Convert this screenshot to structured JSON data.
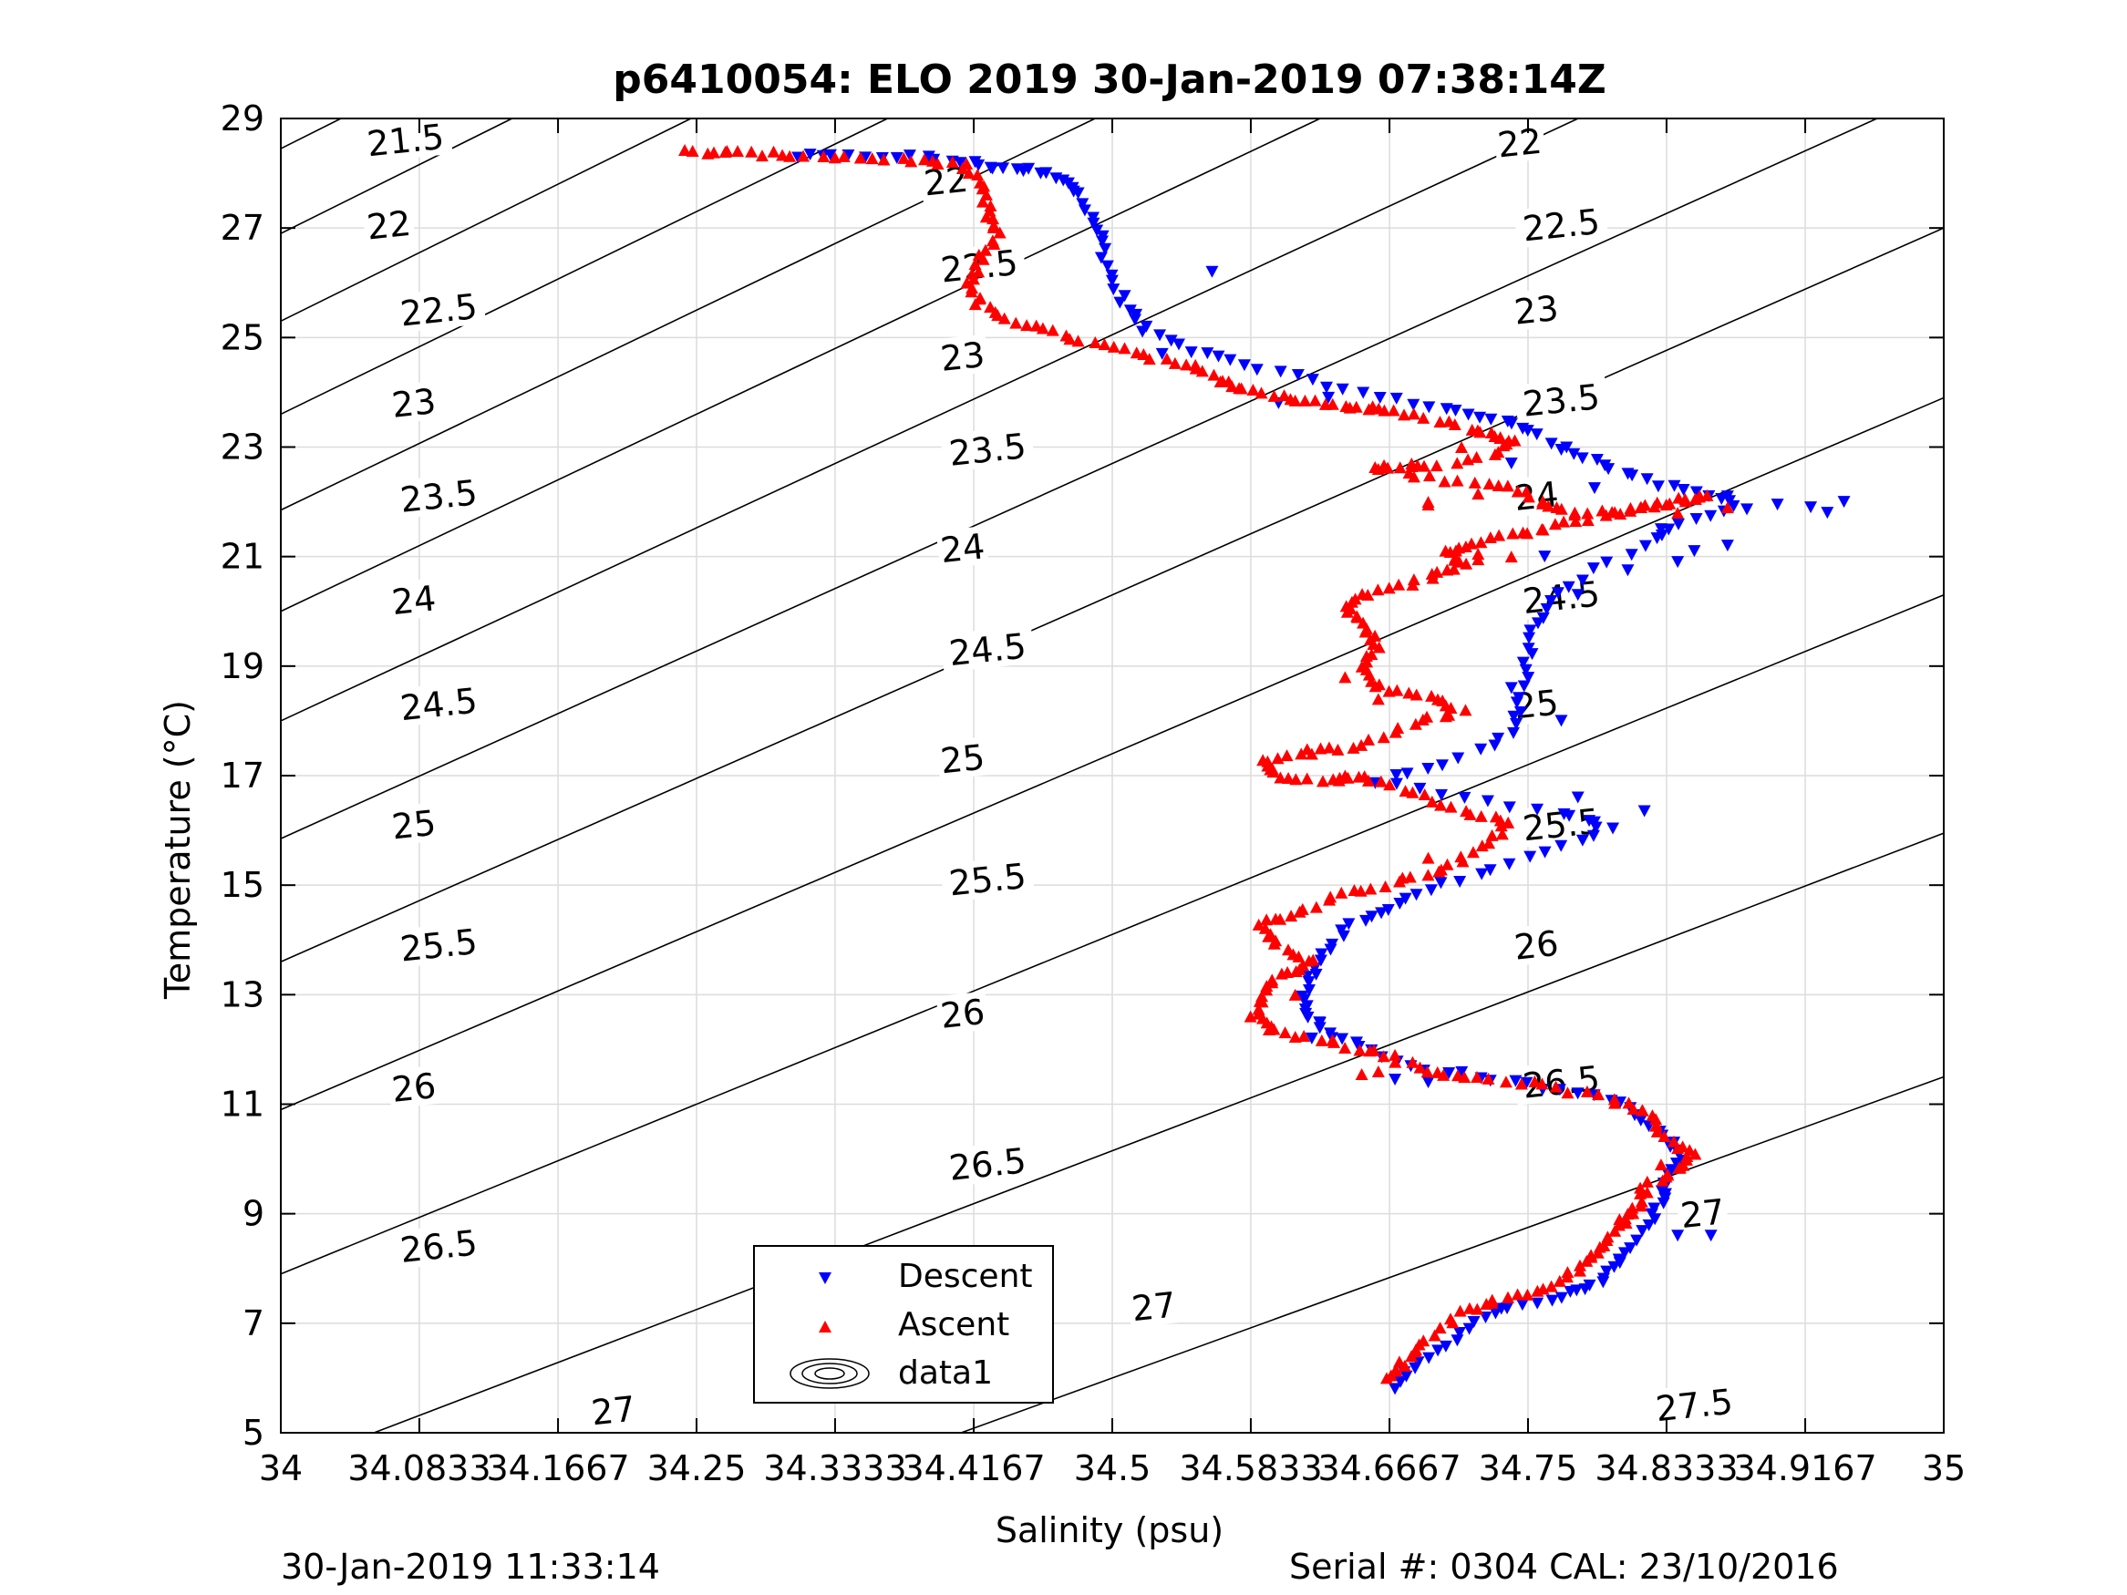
{
  "footer": {
    "left": "30-Jan-2019 11:33:14",
    "right": "Serial #: 0304  CAL: 23/10/2016"
  },
  "colors": {
    "descent": "#0000ff",
    "ascent": "#ff0000",
    "contour": "#000000",
    "grid": "#dcdcdc"
  },
  "chart_data": {
    "type": "scatter",
    "title": "p6410054: ELO 2019 30-Jan-2019 07:38:14Z",
    "xlabel": "Salinity (psu)",
    "ylabel": "Temperature (°C)",
    "xlim": [
      34,
      35
    ],
    "ylim": [
      5,
      29
    ],
    "grid": true,
    "legend_position": "bottom-center",
    "xticks": [
      34,
      34.0833,
      34.1667,
      34.25,
      34.3333,
      34.4167,
      34.5,
      34.5833,
      34.6667,
      34.75,
      34.8333,
      34.9167,
      35
    ],
    "xtick_labels": [
      "34",
      "34.0833",
      "34.1667",
      "34.25",
      "34.3333",
      "34.4167",
      "34.5",
      "34.5833",
      "34.6667",
      "34.75",
      "34.8333",
      "34.9167",
      "35"
    ],
    "yticks": [
      5,
      7,
      9,
      11,
      13,
      15,
      17,
      19,
      21,
      23,
      25,
      27,
      29
    ],
    "ytick_labels": [
      "5",
      "7",
      "9",
      "11",
      "13",
      "15",
      "17",
      "19",
      "21",
      "23",
      "25",
      "27",
      "29"
    ],
    "contours": [
      {
        "label": "21.5",
        "t0": 28.45,
        "slope": 15.2
      },
      {
        "label": "22",
        "t0": 26.9,
        "slope": 15.1
      },
      {
        "label": "22.5",
        "t0": 25.3,
        "slope": 15.0
      },
      {
        "label": "23",
        "t0": 23.6,
        "slope": 14.8
      },
      {
        "label": "23.5",
        "t0": 21.85,
        "slope": 14.6
      },
      {
        "label": "24",
        "t0": 20.0,
        "slope": 14.4
      },
      {
        "label": "24.5",
        "t0": 18.0,
        "slope": 14.1
      },
      {
        "label": "25",
        "t0": 15.85,
        "slope": 13.7
      },
      {
        "label": "25.5",
        "t0": 13.6,
        "slope": 13.4
      },
      {
        "label": "26",
        "t0": 10.9,
        "slope": 13.0
      },
      {
        "label": "26.5",
        "t0": 7.9,
        "slope": 12.4
      },
      {
        "label": "27",
        "t0": 4.35,
        "slope": 11.6
      },
      {
        "label": "27.5",
        "t0": 0.5,
        "slope": 11.0
      }
    ],
    "contour_labels": [
      {
        "label": "21.5",
        "x": 34.075,
        "y": 28.6
      },
      {
        "label": "22",
        "x": 34.065,
        "y": 27.05
      },
      {
        "label": "22.5",
        "x": 34.095,
        "y": 25.5
      },
      {
        "label": "23",
        "x": 34.08,
        "y": 23.8
      },
      {
        "label": "23.5",
        "x": 34.095,
        "y": 22.1
      },
      {
        "label": "24",
        "x": 34.08,
        "y": 20.2
      },
      {
        "label": "24.5",
        "x": 34.095,
        "y": 18.3
      },
      {
        "label": "25",
        "x": 34.08,
        "y": 16.1
      },
      {
        "label": "25.5",
        "x": 34.095,
        "y": 13.9
      },
      {
        "label": "26",
        "x": 34.08,
        "y": 11.3
      },
      {
        "label": "26.5",
        "x": 34.095,
        "y": 8.4
      },
      {
        "label": "27",
        "x": 34.2,
        "y": 5.4
      },
      {
        "label": "22",
        "x": 34.4,
        "y": 27.85
      },
      {
        "label": "22.5",
        "x": 34.42,
        "y": 26.3
      },
      {
        "label": "23",
        "x": 34.41,
        "y": 24.65
      },
      {
        "label": "23.5",
        "x": 34.425,
        "y": 22.95
      },
      {
        "label": "24",
        "x": 34.41,
        "y": 21.15
      },
      {
        "label": "24.5",
        "x": 34.425,
        "y": 19.3
      },
      {
        "label": "25",
        "x": 34.41,
        "y": 17.3
      },
      {
        "label": "25.5",
        "x": 34.425,
        "y": 15.1
      },
      {
        "label": "26",
        "x": 34.41,
        "y": 12.65
      },
      {
        "label": "26.5",
        "x": 34.425,
        "y": 9.9
      },
      {
        "label": "27",
        "x": 34.525,
        "y": 7.3
      },
      {
        "label": "22",
        "x": 34.745,
        "y": 28.55
      },
      {
        "label": "22.5",
        "x": 34.77,
        "y": 27.05
      },
      {
        "label": "23",
        "x": 34.755,
        "y": 25.5
      },
      {
        "label": "23.5",
        "x": 34.77,
        "y": 23.85
      },
      {
        "label": "24",
        "x": 34.755,
        "y": 22.1
      },
      {
        "label": "24.5",
        "x": 34.77,
        "y": 20.25
      },
      {
        "label": "25",
        "x": 34.755,
        "y": 18.3
      },
      {
        "label": "25.5",
        "x": 34.77,
        "y": 16.1
      },
      {
        "label": "26",
        "x": 34.755,
        "y": 13.9
      },
      {
        "label": "26.5",
        "x": 34.77,
        "y": 11.4
      },
      {
        "label": "27",
        "x": 34.855,
        "y": 9.0
      },
      {
        "label": "27.5",
        "x": 34.85,
        "y": 5.5
      }
    ],
    "legend": [
      "Descent",
      "Ascent",
      "data1"
    ],
    "descent_path": [
      [
        34.31,
        28.3
      ],
      [
        34.34,
        28.3
      ],
      [
        34.38,
        28.3
      ],
      [
        34.41,
        28.2
      ],
      [
        34.43,
        28.1
      ],
      [
        34.45,
        28.05
      ],
      [
        34.47,
        27.9
      ],
      [
        34.48,
        27.6
      ],
      [
        34.49,
        27.1
      ],
      [
        34.495,
        26.6
      ],
      [
        34.5,
        26.0
      ],
      [
        34.51,
        25.5
      ],
      [
        34.52,
        25.1
      ],
      [
        34.55,
        24.75
      ],
      [
        34.58,
        24.5
      ],
      [
        34.62,
        24.2
      ],
      [
        34.66,
        23.9
      ],
      [
        34.7,
        23.7
      ],
      [
        34.73,
        23.5
      ],
      [
        34.75,
        23.3
      ],
      [
        34.78,
        22.9
      ],
      [
        34.8,
        22.6
      ],
      [
        34.83,
        22.3
      ],
      [
        34.86,
        22.1
      ],
      [
        34.88,
        21.9
      ],
      [
        34.84,
        21.6
      ],
      [
        34.82,
        21.2
      ],
      [
        34.78,
        20.6
      ],
      [
        34.76,
        20.0
      ],
      [
        34.75,
        19.5
      ],
      [
        34.75,
        18.9
      ],
      [
        34.745,
        18.3
      ],
      [
        34.74,
        17.8
      ],
      [
        34.7,
        17.2
      ],
      [
        34.66,
        16.9
      ],
      [
        34.71,
        16.6
      ],
      [
        34.77,
        16.3
      ],
      [
        34.8,
        16.0
      ],
      [
        34.76,
        15.6
      ],
      [
        34.72,
        15.2
      ],
      [
        34.68,
        14.8
      ],
      [
        34.66,
        14.5
      ],
      [
        34.64,
        14.2
      ],
      [
        34.625,
        13.7
      ],
      [
        34.62,
        13.3
      ],
      [
        34.615,
        12.9
      ],
      [
        34.62,
        12.6
      ],
      [
        34.63,
        12.3
      ],
      [
        34.65,
        12.05
      ],
      [
        34.68,
        11.7
      ],
      [
        34.72,
        11.5
      ],
      [
        34.76,
        11.3
      ],
      [
        34.8,
        11.1
      ],
      [
        34.82,
        10.7
      ],
      [
        34.835,
        10.3
      ],
      [
        34.84,
        10.0
      ],
      [
        34.835,
        9.6
      ],
      [
        34.83,
        9.3
      ],
      [
        34.825,
        8.9
      ],
      [
        34.81,
        8.4
      ],
      [
        34.8,
        8.0
      ],
      [
        34.79,
        7.7
      ],
      [
        34.77,
        7.5
      ],
      [
        34.74,
        7.3
      ],
      [
        34.72,
        7.0
      ],
      [
        34.7,
        6.6
      ],
      [
        34.68,
        6.2
      ],
      [
        34.67,
        5.8
      ]
    ],
    "descent_outliers": [
      [
        34.9,
        21.95
      ],
      [
        34.92,
        21.9
      ],
      [
        34.94,
        22.0
      ],
      [
        34.93,
        21.8
      ],
      [
        34.87,
        22.1
      ],
      [
        34.85,
        21.1
      ],
      [
        34.87,
        21.2
      ],
      [
        34.83,
        21.5
      ],
      [
        34.84,
        20.9
      ],
      [
        34.81,
        20.75
      ],
      [
        34.76,
        21.0
      ],
      [
        34.78,
        20.3
      ],
      [
        34.74,
        18.6
      ],
      [
        34.77,
        18.0
      ],
      [
        34.73,
        17.55
      ],
      [
        34.78,
        16.6
      ],
      [
        34.82,
        16.35
      ],
      [
        34.79,
        16.15
      ],
      [
        34.56,
        26.2
      ],
      [
        34.53,
        24.7
      ],
      [
        34.6,
        23.8
      ],
      [
        34.63,
        23.9
      ],
      [
        34.77,
        22.95
      ],
      [
        34.79,
        22.25
      ],
      [
        34.74,
        22.7
      ],
      [
        34.62,
        12.2
      ],
      [
        34.67,
        11.45
      ],
      [
        34.69,
        11.4
      ],
      [
        34.84,
        8.6
      ],
      [
        34.86,
        8.6
      ]
    ],
    "ascent_path": [
      [
        34.245,
        28.4
      ],
      [
        34.27,
        28.38
      ],
      [
        34.3,
        28.35
      ],
      [
        34.34,
        28.3
      ],
      [
        34.38,
        28.25
      ],
      [
        34.41,
        28.15
      ],
      [
        34.42,
        27.8
      ],
      [
        34.425,
        27.3
      ],
      [
        34.43,
        26.9
      ],
      [
        34.42,
        26.4
      ],
      [
        34.415,
        26.0
      ],
      [
        34.42,
        25.6
      ],
      [
        34.44,
        25.3
      ],
      [
        34.47,
        25.05
      ],
      [
        34.5,
        24.85
      ],
      [
        34.53,
        24.6
      ],
      [
        34.56,
        24.3
      ],
      [
        34.58,
        24.05
      ],
      [
        34.61,
        23.9
      ],
      [
        34.64,
        23.75
      ],
      [
        34.66,
        23.7
      ],
      [
        34.69,
        23.55
      ],
      [
        34.72,
        23.3
      ],
      [
        34.74,
        23.15
      ],
      [
        34.73,
        22.9
      ],
      [
        34.69,
        22.65
      ],
      [
        34.66,
        22.65
      ],
      [
        34.7,
        22.4
      ],
      [
        34.74,
        22.3
      ],
      [
        34.76,
        21.95
      ],
      [
        34.78,
        21.8
      ],
      [
        34.81,
        21.85
      ],
      [
        34.84,
        22.05
      ],
      [
        34.86,
        22.1
      ],
      [
        34.82,
        21.9
      ],
      [
        34.78,
        21.65
      ],
      [
        34.75,
        21.45
      ],
      [
        34.72,
        21.3
      ],
      [
        34.7,
        21.1
      ],
      [
        34.71,
        20.85
      ],
      [
        34.69,
        20.6
      ],
      [
        34.66,
        20.4
      ],
      [
        34.64,
        20.1
      ],
      [
        34.65,
        19.8
      ],
      [
        34.66,
        19.4
      ],
      [
        34.65,
        19.0
      ],
      [
        34.66,
        18.6
      ],
      [
        34.69,
        18.45
      ],
      [
        34.71,
        18.2
      ],
      [
        34.68,
        17.95
      ],
      [
        34.65,
        17.55
      ],
      [
        34.62,
        17.45
      ],
      [
        34.59,
        17.25
      ],
      [
        34.6,
        17.0
      ],
      [
        34.63,
        16.9
      ],
      [
        34.65,
        17.0
      ],
      [
        34.68,
        16.7
      ],
      [
        34.71,
        16.35
      ],
      [
        34.74,
        16.15
      ],
      [
        34.72,
        15.7
      ],
      [
        34.7,
        15.3
      ],
      [
        34.67,
        15.05
      ],
      [
        34.64,
        14.85
      ],
      [
        34.61,
        14.5
      ],
      [
        34.59,
        14.3
      ],
      [
        34.6,
        13.9
      ],
      [
        34.62,
        13.6
      ],
      [
        34.6,
        13.35
      ],
      [
        34.59,
        13.0
      ],
      [
        34.585,
        12.6
      ],
      [
        34.6,
        12.35
      ],
      [
        34.63,
        12.15
      ],
      [
        34.66,
        11.95
      ],
      [
        34.69,
        11.6
      ],
      [
        34.72,
        11.5
      ],
      [
        34.76,
        11.35
      ],
      [
        34.8,
        11.1
      ],
      [
        34.82,
        10.85
      ],
      [
        34.83,
        10.5
      ],
      [
        34.85,
        10.1
      ],
      [
        34.84,
        9.8
      ],
      [
        34.82,
        9.5
      ],
      [
        34.815,
        9.1
      ],
      [
        34.8,
        8.7
      ],
      [
        34.79,
        8.3
      ],
      [
        34.78,
        8.0
      ],
      [
        34.76,
        7.6
      ],
      [
        34.73,
        7.45
      ],
      [
        34.71,
        7.2
      ],
      [
        34.69,
        6.7
      ],
      [
        34.675,
        6.3
      ],
      [
        34.665,
        6.0
      ]
    ],
    "ascent_outliers": [
      [
        34.69,
        22.0
      ],
      [
        34.72,
        22.15
      ],
      [
        34.69,
        21.95
      ],
      [
        34.72,
        21.05
      ],
      [
        34.74,
        21.0
      ],
      [
        34.72,
        20.95
      ],
      [
        34.73,
        23.2
      ],
      [
        34.71,
        23.0
      ],
      [
        34.68,
        22.7
      ],
      [
        34.66,
        22.6
      ],
      [
        34.84,
        21.8
      ],
      [
        34.87,
        21.9
      ],
      [
        34.55,
        24.5
      ],
      [
        34.57,
        24.2
      ],
      [
        34.61,
        23.85
      ],
      [
        34.64,
        18.8
      ],
      [
        34.66,
        18.4
      ],
      [
        34.62,
        17.4
      ],
      [
        34.64,
        17.0
      ],
      [
        34.69,
        15.5
      ],
      [
        34.61,
        13.0
      ],
      [
        34.65,
        11.55
      ],
      [
        34.66,
        11.6
      ],
      [
        34.67,
        11.9
      ],
      [
        34.84,
        10.2
      ],
      [
        34.83,
        9.9
      ],
      [
        34.81,
        9.0
      ],
      [
        34.805,
        8.9
      ]
    ]
  }
}
